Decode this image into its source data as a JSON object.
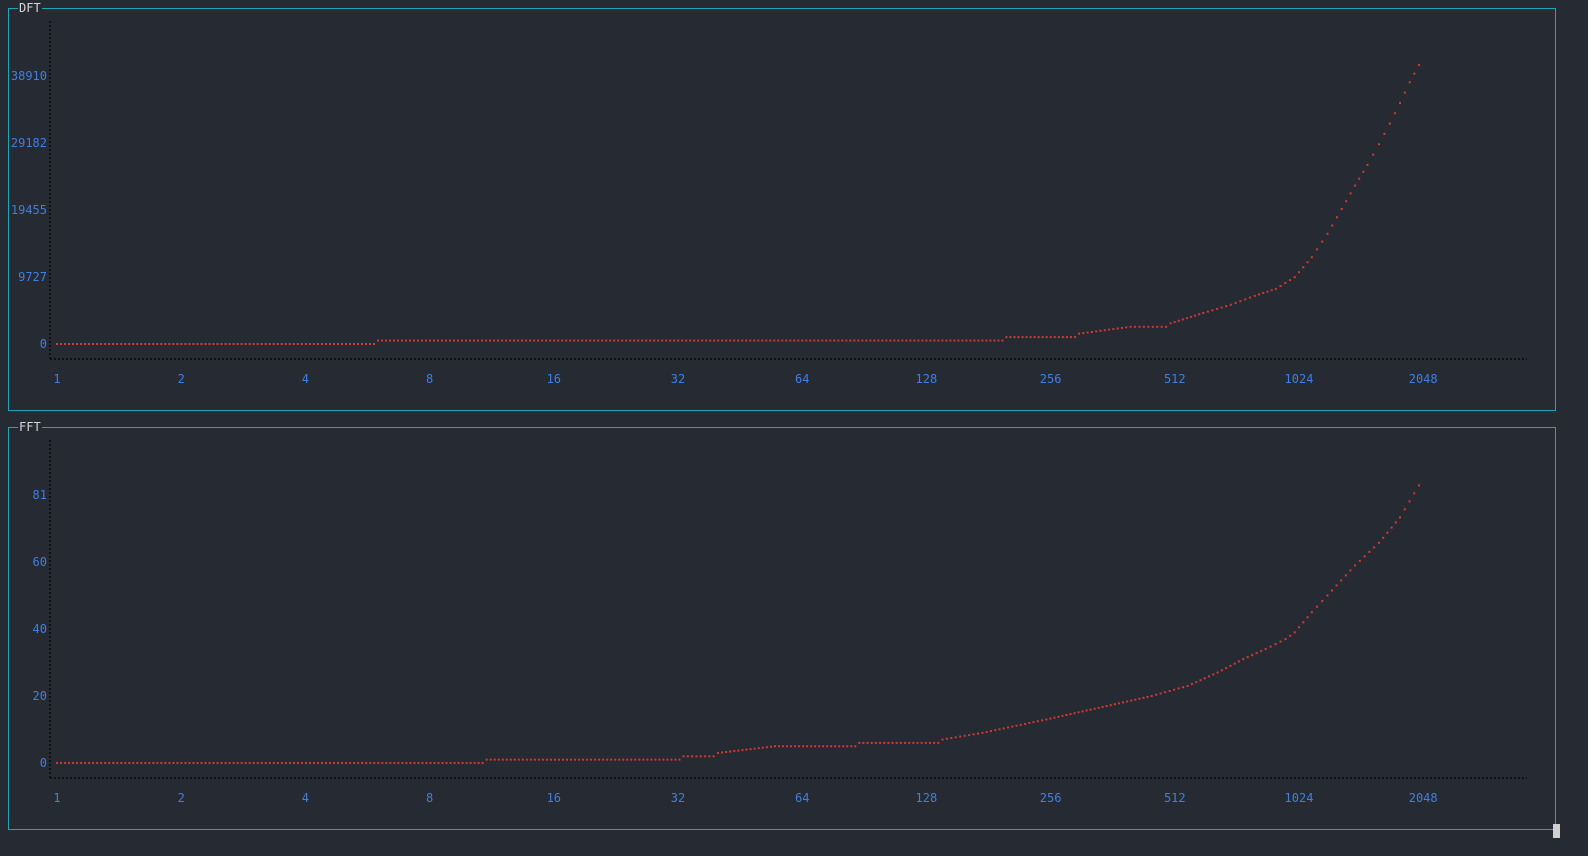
{
  "panels": [
    {
      "title": "DFT"
    },
    {
      "title": "FFT"
    }
  ],
  "colors": {
    "frame": "#1fa4b8",
    "tick_text": "#3f7fe0",
    "points": "#d23a32",
    "axis_dots": "#111111"
  },
  "chart_data": [
    {
      "type": "scatter",
      "title": "DFT",
      "x_scale": "log2",
      "x_ticks": [
        "1",
        "2",
        "4",
        "8",
        "16",
        "32",
        "64",
        "128",
        "256",
        "512",
        "1024",
        "2048"
      ],
      "y_ticks": [
        "0",
        "9727",
        "19455",
        "29182",
        "38910"
      ],
      "xlim": [
        1,
        3000
      ],
      "ylim": [
        -1000,
        43000
      ],
      "series": [
        {
          "x": [
            1,
            6,
            200,
            300,
            400,
            500,
            600,
            700,
            800,
            900,
            1000,
            1100,
            1200,
            1300,
            1400,
            1500,
            1600,
            1700,
            1800,
            1900,
            2000
          ],
          "y": [
            0,
            500,
            1000,
            1500,
            2500,
            3000,
            4500,
            5700,
            7000,
            8000,
            9700,
            12600,
            16000,
            19600,
            23000,
            26000,
            29000,
            32000,
            35000,
            38000,
            40500
          ]
        }
      ]
    },
    {
      "type": "scatter",
      "title": "FFT",
      "x_scale": "log2",
      "x_ticks": [
        "1",
        "2",
        "4",
        "8",
        "16",
        "32",
        "64",
        "128",
        "256",
        "512",
        "1024",
        "2048"
      ],
      "y_ticks": [
        "0",
        "20",
        "40",
        "60",
        "81"
      ],
      "xlim": [
        1,
        3000
      ],
      "ylim": [
        -2,
        90
      ],
      "series": [
        {
          "x": [
            1,
            11,
            33,
            40,
            55,
            88,
            140,
            175,
            250,
            350,
            450,
            550,
            650,
            750,
            850,
            950,
            1000,
            1100,
            1200,
            1400,
            1600,
            1800,
            2000
          ],
          "y": [
            0,
            1,
            2,
            3,
            5,
            6,
            7,
            9,
            13,
            17,
            20,
            23,
            27,
            31,
            34,
            37,
            39,
            45,
            50,
            59,
            66,
            74,
            84
          ]
        }
      ]
    }
  ]
}
